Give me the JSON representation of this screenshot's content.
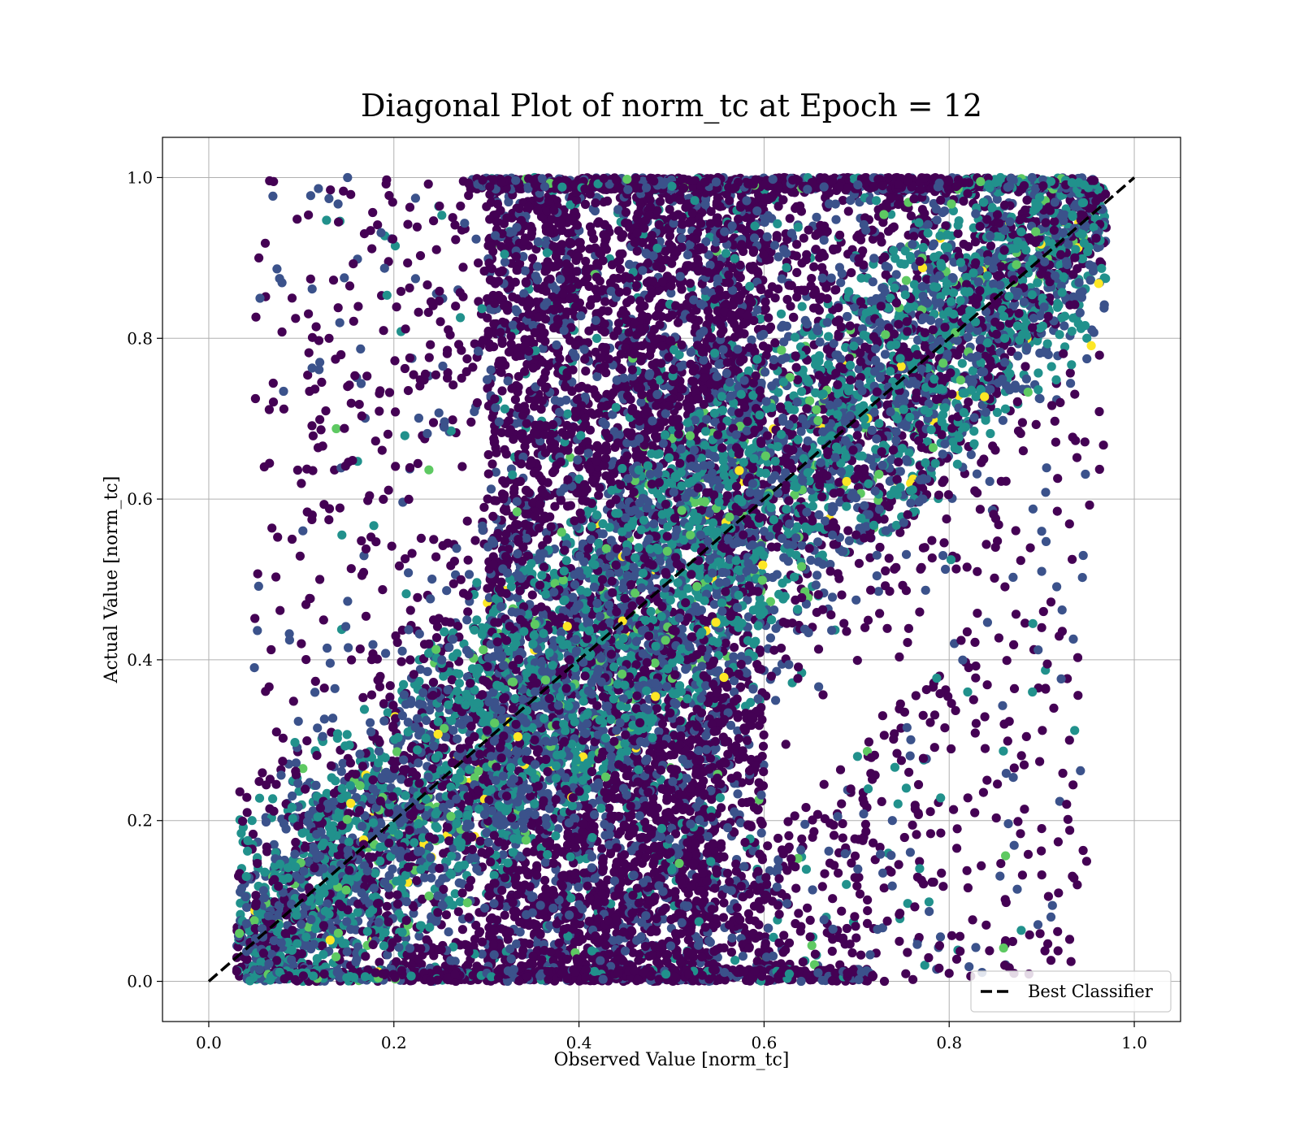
{
  "chart_data": {
    "type": "scatter",
    "title": "Diagonal Plot of norm_tc at Epoch = 12",
    "xlabel": "Observed Value [norm_tc]",
    "ylabel": "Actual Value [norm_tc]",
    "xlim": [
      -0.05,
      1.05
    ],
    "ylim": [
      -0.05,
      1.05
    ],
    "xticks": [
      0.0,
      0.2,
      0.4,
      0.6,
      0.8,
      1.0
    ],
    "yticks": [
      0.0,
      0.2,
      0.4,
      0.6,
      0.8,
      1.0
    ],
    "xtick_labels": [
      "0.0",
      "0.2",
      "0.4",
      "0.6",
      "0.8",
      "1.0"
    ],
    "ytick_labels": [
      "0.0",
      "0.2",
      "0.4",
      "0.6",
      "0.8",
      "1.0"
    ],
    "grid": true,
    "colormap": "viridis",
    "point_color_range": [
      "#440154",
      "#3b528b",
      "#21918c",
      "#5ec962",
      "#fde725"
    ],
    "density": {
      "x_range": [
        0.03,
        0.97
      ],
      "y_range": [
        0.0,
        1.0
      ],
      "dense_band_x": [
        0.3,
        0.6
      ],
      "note_points": "thousands of points concentrated along and around the diagonal"
    },
    "sample_points": [
      [
        0.07,
        0.995
      ],
      [
        0.15,
        1.0
      ],
      [
        0.09,
        0.85
      ],
      [
        0.06,
        0.64
      ],
      [
        0.13,
        0.8
      ],
      [
        0.12,
        0.77
      ],
      [
        0.09,
        0.55
      ],
      [
        0.1,
        0.42
      ],
      [
        0.12,
        0.5
      ],
      [
        0.15,
        0.74
      ],
      [
        0.82,
        0.36
      ],
      [
        0.89,
        0.36
      ],
      [
        0.93,
        0.3
      ],
      [
        0.9,
        0.19
      ],
      [
        0.91,
        0.08
      ],
      [
        0.86,
        0.02
      ],
      [
        0.87,
        0.01
      ],
      [
        0.84,
        0.07
      ],
      [
        0.8,
        0.01
      ],
      [
        0.9,
        0.44
      ],
      [
        0.9,
        0.51
      ],
      [
        0.9,
        0.56
      ],
      [
        0.92,
        0.72
      ],
      [
        0.88,
        0.66
      ],
      [
        0.85,
        0.54
      ],
      [
        0.24,
        0.24
      ],
      [
        0.31,
        0.25
      ],
      [
        0.55,
        0.68
      ],
      [
        0.57,
        0.68
      ],
      [
        0.4,
        0.51
      ],
      [
        0.6,
        0.56
      ],
      [
        0.82,
        0.98
      ],
      [
        0.86,
        0.77
      ],
      [
        0.86,
        0.8
      ],
      [
        0.14,
        0.06
      ],
      [
        0.72,
        0.61
      ],
      [
        0.39,
        0.4
      ],
      [
        0.28,
        0.23
      ],
      [
        0.64,
        0.0
      ],
      [
        0.73,
        0.0
      ]
    ],
    "series": [
      {
        "name": "Best Classifier",
        "kind": "line",
        "style": "dashed",
        "color": "#000000",
        "x": [
          0.0,
          1.0
        ],
        "y": [
          0.0,
          1.0
        ]
      }
    ],
    "legend": {
      "placement": "lower-right",
      "entries": [
        "Best Classifier"
      ]
    }
  }
}
